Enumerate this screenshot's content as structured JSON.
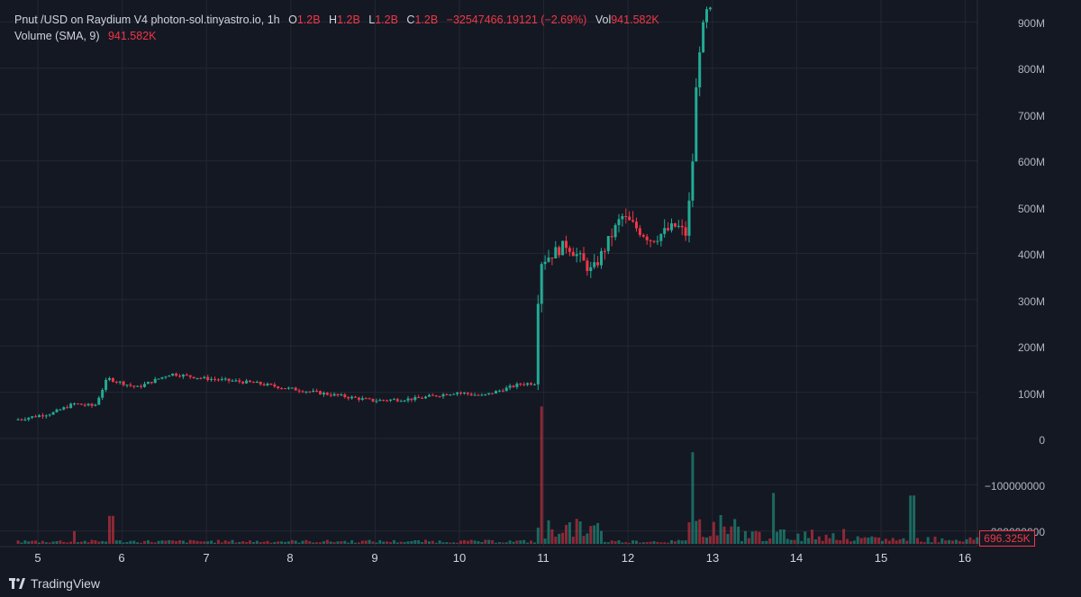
{
  "legend": {
    "title": "Pnut /USD on Raydium V4 photon-sol.tinyastro.io, 1h",
    "o_label": "O",
    "o_value": "1.2B",
    "h_label": "H",
    "h_value": "1.2B",
    "l_label": "L",
    "l_value": "1.2B",
    "c_label": "C",
    "c_value": "1.2B",
    "change": "−32547466.19121 (−2.69%)",
    "vol_label": "Vol",
    "vol_value": "941.582K",
    "volume_title": "Volume (SMA, 9)",
    "volume_value": "941.582K"
  },
  "y_axis": [
    "900M",
    "800M",
    "700M",
    "600M",
    "500M",
    "400M",
    "300M",
    "200M",
    "100M",
    "0",
    "−100000000",
    "−200000000"
  ],
  "x_axis": [
    "5",
    "6",
    "7",
    "8",
    "9",
    "10",
    "11",
    "12",
    "13",
    "14",
    "15",
    "16"
  ],
  "volume_badge": "696.325K",
  "brand": {
    "name": "TradingView"
  },
  "colors": {
    "up": "#22ab94",
    "down": "#f23645",
    "background": "#141823",
    "grid": "#222733"
  },
  "chart_data": {
    "type": "candlestick",
    "interval": "1h",
    "y_range_millions": [
      -200,
      920
    ],
    "days": [
      5,
      6,
      7,
      8,
      9,
      10,
      11,
      12,
      13,
      14,
      15,
      16
    ],
    "price_key_points_millions": [
      {
        "day": 4.75,
        "price": 40
      },
      {
        "day": 5.2,
        "price": 55
      },
      {
        "day": 5.45,
        "price": 75
      },
      {
        "day": 5.7,
        "price": 70
      },
      {
        "day": 5.85,
        "price": 130
      },
      {
        "day": 6.2,
        "price": 110
      },
      {
        "day": 6.6,
        "price": 140
      },
      {
        "day": 7.0,
        "price": 130
      },
      {
        "day": 7.6,
        "price": 120
      },
      {
        "day": 8.0,
        "price": 108
      },
      {
        "day": 8.5,
        "price": 95
      },
      {
        "day": 9.0,
        "price": 82
      },
      {
        "day": 9.5,
        "price": 86
      },
      {
        "day": 10.0,
        "price": 100
      },
      {
        "day": 10.3,
        "price": 92
      },
      {
        "day": 10.75,
        "price": 118
      },
      {
        "day": 10.93,
        "price": 120
      },
      {
        "day": 10.97,
        "price": 380
      },
      {
        "day": 11.3,
        "price": 420
      },
      {
        "day": 11.6,
        "price": 360
      },
      {
        "day": 11.95,
        "price": 480
      },
      {
        "day": 12.3,
        "price": 430
      },
      {
        "day": 12.6,
        "price": 460
      },
      {
        "day": 12.72,
        "price": 440
      },
      {
        "day": 12.8,
        "price": 620
      },
      {
        "day": 12.85,
        "price": 820
      },
      {
        "day": 12.95,
        "price": 920
      }
    ],
    "volume_spikes_millions": [
      {
        "day": 10.95,
        "volume": 270
      },
      {
        "day": 12.75,
        "volume": 180
      },
      {
        "day": 13.7,
        "volume": 100
      },
      {
        "day": 15.35,
        "volume": 95
      }
    ]
  }
}
